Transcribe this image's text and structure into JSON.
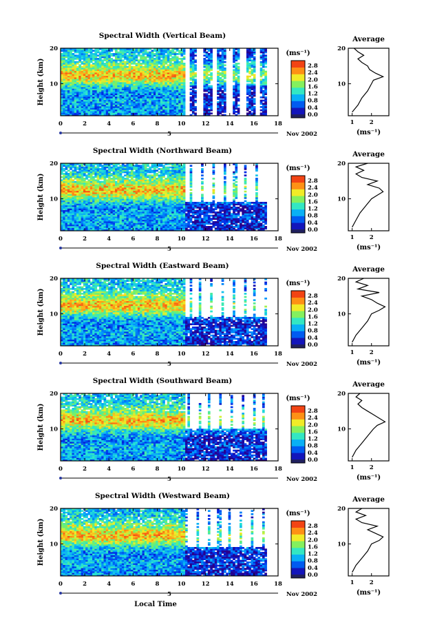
{
  "figure": {
    "xlabel": "Local Time",
    "date_label": "Nov 2002",
    "day_label": "5",
    "ylabel": "Height (km)",
    "colorbar_unit": "(ms⁻¹)",
    "average_title": "Average",
    "average_xlabel": "(ms⁻¹)"
  },
  "chart_data": [
    {
      "type": "heatmap",
      "title": "Spectral Width (Vertical Beam)",
      "xlabel": "Local Time",
      "ylabel": "Height (km)",
      "x_ticks": [
        0,
        2,
        4,
        6,
        8,
        10,
        12,
        14,
        16,
        18
      ],
      "y_ticks": [
        10,
        20
      ],
      "xlim": [
        0,
        18
      ],
      "ylim": [
        1,
        20
      ],
      "colorbar_ticks": [
        "0.0",
        "0.4",
        "0.8",
        "1.2",
        "1.6",
        "2.0",
        "2.4",
        "2.8"
      ],
      "colorbar_range": [
        0,
        3.2
      ],
      "data_coverage": "full 0-10.3 h; partial columns 10.3-17 h",
      "average_profile": {
        "x_ticks": [
          1,
          2
        ],
        "height": [
          2,
          4,
          6,
          8,
          10,
          11,
          12,
          13,
          14,
          15,
          16,
          17,
          18,
          19,
          20
        ],
        "width": [
          1.0,
          1.3,
          1.5,
          1.8,
          2.0,
          2.1,
          2.6,
          2.2,
          1.9,
          1.8,
          1.5,
          1.3,
          1.6,
          1.3,
          1.1
        ]
      }
    },
    {
      "type": "heatmap",
      "title": "Spectral Width (Northward Beam)",
      "xlabel": "Local Time",
      "ylabel": "Height (km)",
      "x_ticks": [
        0,
        2,
        4,
        6,
        8,
        10,
        12,
        14,
        16,
        18
      ],
      "y_ticks": [
        10,
        20
      ],
      "xlim": [
        0,
        18
      ],
      "ylim": [
        1,
        20
      ],
      "colorbar_ticks": [
        "0.0",
        "0.4",
        "0.8",
        "1.2",
        "1.6",
        "2.0",
        "2.4",
        "2.8"
      ],
      "colorbar_range": [
        0,
        3.2
      ],
      "data_coverage": "full 0-10.3 h; below ~9 km and sparse columns after 10.3 h",
      "average_profile": {
        "x_ticks": [
          1,
          2
        ],
        "height": [
          2,
          4,
          6,
          8,
          10,
          11,
          12,
          13,
          14,
          15,
          16,
          17,
          18,
          19,
          20
        ],
        "width": [
          1.0,
          1.2,
          1.4,
          1.7,
          2.0,
          2.3,
          2.6,
          2.4,
          1.8,
          2.3,
          1.5,
          1.2,
          1.6,
          1.2,
          1.8
        ]
      }
    },
    {
      "type": "heatmap",
      "title": "Spectral Width (Eastward Beam)",
      "xlabel": "Local Time",
      "ylabel": "Height (km)",
      "x_ticks": [
        0,
        2,
        4,
        6,
        8,
        10,
        12,
        14,
        16,
        18
      ],
      "y_ticks": [
        10,
        20
      ],
      "xlim": [
        0,
        18
      ],
      "ylim": [
        1,
        20
      ],
      "colorbar_ticks": [
        "0.0",
        "0.4",
        "0.8",
        "1.2",
        "1.6",
        "2.0",
        "2.4",
        "2.8"
      ],
      "colorbar_range": [
        0,
        3.2
      ],
      "data_coverage": "full 0-10.3 h; below ~9 km and sparse columns after 10.3 h",
      "average_profile": {
        "x_ticks": [
          1,
          2
        ],
        "height": [
          2,
          4,
          6,
          8,
          10,
          11,
          12,
          13,
          14,
          15,
          16,
          17,
          18,
          19,
          20
        ],
        "width": [
          1.0,
          1.2,
          1.5,
          1.8,
          2.0,
          2.4,
          2.7,
          2.3,
          2.0,
          1.5,
          2.4,
          1.3,
          1.8,
          1.2,
          1.6
        ]
      }
    },
    {
      "type": "heatmap",
      "title": "Spectral Width (Southward Beam)",
      "xlabel": "Local Time",
      "ylabel": "Height (km)",
      "x_ticks": [
        0,
        2,
        4,
        6,
        8,
        10,
        12,
        14,
        16,
        18
      ],
      "y_ticks": [
        10,
        20
      ],
      "xlim": [
        0,
        18
      ],
      "ylim": [
        1,
        20
      ],
      "colorbar_ticks": [
        "0.0",
        "0.4",
        "0.8",
        "1.2",
        "1.6",
        "2.0",
        "2.4",
        "2.8"
      ],
      "colorbar_range": [
        0,
        3.2
      ],
      "data_coverage": "full 0-10.3 h; below ~10 km and sparse columns after 10.3 h",
      "average_profile": {
        "x_ticks": [
          1,
          2
        ],
        "height": [
          2,
          4,
          6,
          8,
          10,
          11,
          12,
          13,
          14,
          15,
          16,
          17,
          18,
          19,
          20
        ],
        "width": [
          1.0,
          1.2,
          1.5,
          1.8,
          2.1,
          2.3,
          2.7,
          2.4,
          2.1,
          1.8,
          1.5,
          1.3,
          1.5,
          1.2,
          1.4
        ]
      }
    },
    {
      "type": "heatmap",
      "title": "Spectral Width (Westward Beam)",
      "xlabel": "Local Time",
      "ylabel": "Height (km)",
      "x_ticks": [
        0,
        2,
        4,
        6,
        8,
        10,
        12,
        14,
        16,
        18
      ],
      "y_ticks": [
        10,
        20
      ],
      "xlim": [
        0,
        18
      ],
      "ylim": [
        1,
        20
      ],
      "colorbar_ticks": [
        "0.0",
        "0.4",
        "0.8",
        "1.2",
        "1.6",
        "2.0",
        "2.4",
        "2.8"
      ],
      "colorbar_range": [
        0,
        3.2
      ],
      "data_coverage": "full 0-10.3 h; below ~9 km and sparse columns after 10.3 h",
      "average_profile": {
        "x_ticks": [
          1,
          2
        ],
        "height": [
          2,
          4,
          6,
          8,
          10,
          11,
          12,
          13,
          14,
          15,
          16,
          17,
          18,
          19,
          20
        ],
        "width": [
          1.0,
          1.2,
          1.5,
          1.8,
          2.0,
          2.4,
          2.6,
          2.2,
          1.8,
          2.3,
          1.5,
          1.2,
          1.7,
          1.2,
          1.5
        ]
      }
    }
  ]
}
